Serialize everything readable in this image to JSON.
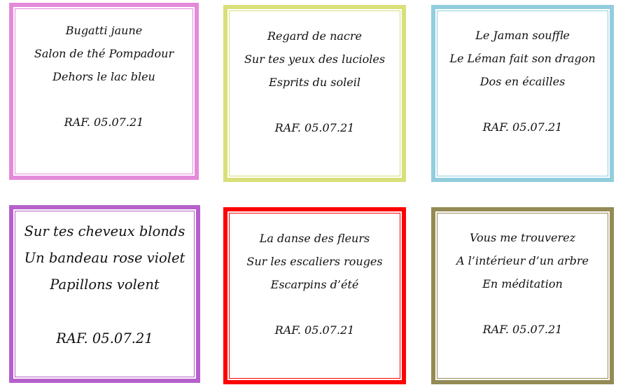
{
  "cards": [
    {
      "color": "#e38bd9",
      "lines": [
        "Bugatti jaune",
        "Salon de thé Pompadour",
        "Dehors le lac bleu"
      ],
      "signature": "RAF. 05.07.21"
    },
    {
      "color": "#d9df7a",
      "lines": [
        "Regard de nacre",
        "Sur tes yeux des lucioles",
        "Esprits du soleil"
      ],
      "signature": "RAF. 05.07.21"
    },
    {
      "color": "#92cddd",
      "lines": [
        "Le Jaman souffle",
        "Le Léman fait son dragon",
        "Dos en écailles"
      ],
      "signature": "RAF. 05.07.21"
    },
    {
      "color": "#b660cc",
      "lines": [
        "Sur tes cheveux blonds",
        "Un bandeau rose violet",
        "Papillons volent"
      ],
      "signature": "RAF. 05.07.21"
    },
    {
      "color": "#ff0000",
      "lines": [
        "La danse des fleurs",
        "Sur les escaliers rouges",
        "Escarpins d’été"
      ],
      "signature": "RAF. 05.07.21"
    },
    {
      "color": "#948a55",
      "lines": [
        "Vous me trouverez",
        "A l’intérieur d’un arbre",
        "En méditation"
      ],
      "signature": "RAF. 05.07.21"
    }
  ]
}
